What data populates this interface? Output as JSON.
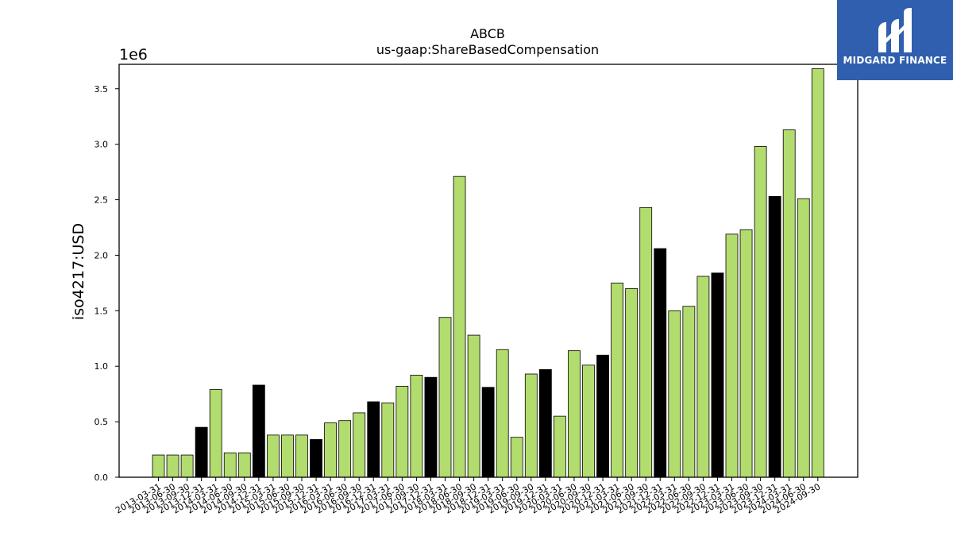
{
  "logo": {
    "name": "MIDGARD FINANCE"
  },
  "colors": {
    "bar_green": "#b2dc6e",
    "bar_black": "#000000",
    "logo_bg": "#2f5fae"
  },
  "chart_data": {
    "type": "bar",
    "title": "ABCB",
    "subtitle": "us-gaap:ShareBasedCompensation",
    "ylabel": "iso4217:USD",
    "xlabel": "",
    "y_scale_label": "1e6",
    "ylim": [
      0,
      3.72
    ],
    "yticks": [
      "0.0",
      "0.5",
      "1.0",
      "1.5",
      "2.0",
      "2.5",
      "3.0",
      "3.5"
    ],
    "grid": false,
    "categories": [
      "2013-03-31",
      "2013-06-30",
      "2013-09-30",
      "2013-12-31",
      "2014-03-31",
      "2014-06-30",
      "2014-09-30",
      "2014-12-31",
      "2015-03-31",
      "2015-06-30",
      "2015-09-30",
      "2015-12-31",
      "2016-03-31",
      "2016-06-30",
      "2016-09-30",
      "2016-12-31",
      "2017-03-31",
      "2017-06-30",
      "2017-09-30",
      "2017-12-31",
      "2018-03-31",
      "2018-06-30",
      "2018-09-30",
      "2018-12-31",
      "2019-03-31",
      "2019-06-30",
      "2019-09-30",
      "2019-12-31",
      "2020-03-31",
      "2020-06-30",
      "2020-09-30",
      "2020-12-31",
      "2021-03-31",
      "2021-06-30",
      "2021-09-30",
      "2021-12-31",
      "2022-03-31",
      "2022-06-30",
      "2022-09-30",
      "2022-12-31",
      "2023-03-31",
      "2023-06-30",
      "2023-09-30",
      "2023-12-31",
      "2024-03-31",
      "2024-06-30",
      "2024-09-30"
    ],
    "values": [
      0.2,
      0.2,
      0.2,
      0.45,
      0.79,
      0.22,
      0.22,
      0.83,
      0.38,
      0.38,
      0.38,
      0.34,
      0.49,
      0.51,
      0.58,
      0.68,
      0.67,
      0.82,
      0.92,
      0.9,
      1.44,
      2.71,
      1.28,
      0.81,
      1.15,
      0.36,
      0.93,
      0.97,
      0.55,
      1.14,
      1.01,
      1.1,
      1.75,
      1.7,
      2.43,
      2.06,
      1.5,
      1.54,
      1.81,
      1.84,
      2.19,
      2.23,
      2.98,
      2.53,
      3.13,
      2.51,
      3.68
    ],
    "bar_color_keys": [
      "g",
      "g",
      "g",
      "k",
      "g",
      "g",
      "g",
      "k",
      "g",
      "g",
      "g",
      "k",
      "g",
      "g",
      "g",
      "k",
      "g",
      "g",
      "g",
      "k",
      "g",
      "g",
      "g",
      "k",
      "g",
      "g",
      "g",
      "k",
      "g",
      "g",
      "g",
      "k",
      "g",
      "g",
      "g",
      "k",
      "g",
      "g",
      "g",
      "k",
      "g",
      "g",
      "g",
      "k",
      "g",
      "g",
      "g"
    ]
  }
}
